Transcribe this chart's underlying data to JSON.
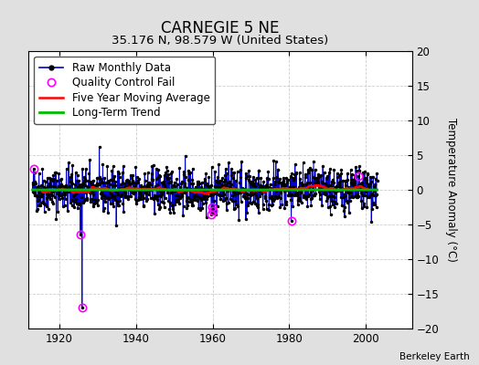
{
  "title": "CARNEGIE 5 NE",
  "subtitle": "35.176 N, 98.579 W (United States)",
  "ylabel": "Temperature Anomaly (°C)",
  "watermark": "Berkeley Earth",
  "xlim": [
    1912,
    2012
  ],
  "ylim": [
    -20,
    20
  ],
  "yticks": [
    -20,
    -15,
    -10,
    -5,
    0,
    5,
    10,
    15,
    20
  ],
  "xticks": [
    1920,
    1940,
    1960,
    1980,
    2000
  ],
  "fig_bg_color": "#e0e0e0",
  "plot_bg_color": "#ffffff",
  "raw_color": "#0000cc",
  "raw_marker_color": "#000000",
  "qc_fail_color": "#ff00ff",
  "moving_avg_color": "#ff0000",
  "trend_color": "#00bb00",
  "moving_avg_lw": 1.8,
  "trend_lw": 2.0,
  "raw_lw": 0.7,
  "seed": 42,
  "n_months": 1080,
  "start_year": 1913.0,
  "qc_fail_indices": [
    3,
    150,
    155,
    560,
    562,
    564,
    810,
    1020
  ],
  "qc_fail_values": [
    3.0,
    -6.5,
    -17.0,
    -3.5,
    -2.5,
    -3.0,
    -4.5,
    2.0
  ],
  "trend_y0": 0.0,
  "trend_y1": 0.0,
  "legend_fontsize": 8.5,
  "title_fontsize": 12,
  "subtitle_fontsize": 9.5
}
